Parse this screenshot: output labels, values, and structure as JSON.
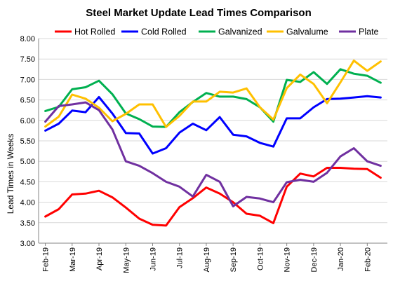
{
  "chart_data": {
    "type": "line",
    "title": "Steel Market Update Lead Times Comparison",
    "ylabel": "Lead Times in Weeks",
    "xlabel": "",
    "ylim": [
      3.0,
      8.0
    ],
    "yticks": [
      "3.00",
      "3.50",
      "4.00",
      "4.50",
      "5.00",
      "5.50",
      "6.00",
      "6.50",
      "7.00",
      "7.50",
      "8.00"
    ],
    "ytick_values": [
      3.0,
      3.5,
      4.0,
      4.5,
      5.0,
      5.5,
      6.0,
      6.5,
      7.0,
      7.5,
      8.0
    ],
    "xtick_labels": [
      "Feb-19",
      "Mar-19",
      "Apr-19",
      "May-19",
      "Jun-19",
      "Jul-19",
      "Aug-19",
      "Sep-19",
      "Oct-19",
      "Nov-19",
      "Dec-19",
      "Jan-20",
      "Feb-20"
    ],
    "points_per_month": 2,
    "grid": true,
    "legend_position": "top",
    "series": [
      {
        "name": "Hot Rolled",
        "color": "#ff0000",
        "values": [
          3.65,
          3.83,
          4.19,
          4.21,
          4.28,
          4.12,
          3.87,
          3.6,
          3.45,
          3.43,
          3.88,
          4.1,
          4.36,
          4.21,
          4.0,
          3.72,
          3.67,
          3.49,
          4.38,
          4.7,
          4.63,
          4.84,
          4.84,
          4.82,
          4.81,
          4.6
        ]
      },
      {
        "name": "Cold Rolled",
        "color": "#0000ff",
        "values": [
          5.75,
          5.92,
          6.24,
          6.2,
          6.57,
          6.17,
          5.69,
          5.68,
          5.19,
          5.32,
          5.7,
          5.92,
          5.76,
          6.08,
          5.65,
          5.61,
          5.45,
          5.36,
          6.05,
          6.05,
          6.32,
          6.52,
          6.53,
          6.56,
          6.59,
          6.56
        ]
      },
      {
        "name": "Galvanized",
        "color": "#00b050",
        "values": [
          6.23,
          6.33,
          6.76,
          6.81,
          6.97,
          6.64,
          6.17,
          6.03,
          5.85,
          5.84,
          6.2,
          6.45,
          6.67,
          6.58,
          6.58,
          6.52,
          6.32,
          5.97,
          6.99,
          6.94,
          7.18,
          6.89,
          7.25,
          7.14,
          7.09,
          6.92
        ]
      },
      {
        "name": "Galvalume",
        "color": "#ffc000",
        "values": [
          5.85,
          6.09,
          6.63,
          6.53,
          6.31,
          5.98,
          6.16,
          6.39,
          6.39,
          5.84,
          6.11,
          6.46,
          6.46,
          6.7,
          6.68,
          6.78,
          6.32,
          6.02,
          6.79,
          7.12,
          6.89,
          6.42,
          6.93,
          7.46,
          7.21,
          7.44
        ]
      },
      {
        "name": "Plate",
        "color": "#7030a0",
        "values": [
          5.97,
          6.35,
          6.39,
          6.44,
          6.25,
          5.78,
          5.0,
          4.89,
          4.71,
          4.5,
          4.38,
          4.14,
          4.67,
          4.5,
          3.9,
          4.13,
          4.09,
          4.0,
          4.49,
          4.55,
          4.5,
          4.72,
          5.12,
          5.32,
          5.0,
          4.89
        ]
      }
    ]
  }
}
